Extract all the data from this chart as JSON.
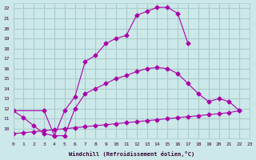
{
  "xlabel": "Windchill (Refroidissement éolien,°C)",
  "bg_color": "#cce8e8",
  "grid_color": "#aacccc",
  "line_color": "#aa00aa",
  "xlim": [
    0,
    23
  ],
  "ylim": [
    9,
    22.5
  ],
  "yticks": [
    10,
    11,
    12,
    13,
    14,
    15,
    16,
    17,
    18,
    19,
    20,
    21,
    22
  ],
  "xticks": [
    0,
    1,
    2,
    3,
    4,
    5,
    6,
    7,
    8,
    9,
    10,
    11,
    12,
    13,
    14,
    15,
    16,
    17,
    18,
    19,
    20,
    21,
    22,
    23
  ],
  "curve1_x": [
    0,
    1,
    2,
    3,
    4,
    5,
    6,
    7,
    8,
    9,
    10,
    11,
    12,
    13,
    14,
    15,
    16,
    17
  ],
  "curve1_y": [
    11.8,
    11.1,
    10.3,
    9.5,
    9.3,
    11.8,
    13.2,
    16.7,
    17.3,
    18.5,
    19.0,
    19.3,
    21.3,
    21.7,
    22.1,
    22.1,
    21.5,
    18.5
  ],
  "curve2_x": [
    0,
    3,
    4,
    5,
    6,
    7,
    8,
    9,
    10,
    11,
    12,
    13,
    14,
    15,
    16,
    17,
    18,
    19,
    20,
    21,
    22
  ],
  "curve2_y": [
    11.8,
    11.8,
    9.3,
    9.3,
    12.0,
    13.5,
    14.0,
    14.5,
    15.0,
    15.3,
    15.7,
    16.0,
    16.1,
    16.0,
    15.5,
    14.5,
    13.5,
    12.7,
    13.0,
    12.7,
    11.8
  ],
  "curve3_x": [
    0,
    1,
    2,
    3,
    4,
    5,
    6,
    7,
    8,
    9,
    10,
    11,
    12,
    13,
    14,
    15,
    16,
    17,
    18,
    19,
    20,
    21,
    22
  ],
  "curve3_y": [
    9.5,
    9.6,
    9.7,
    9.8,
    9.9,
    10.0,
    10.1,
    10.2,
    10.3,
    10.4,
    10.5,
    10.6,
    10.7,
    10.8,
    10.9,
    11.0,
    11.1,
    11.2,
    11.3,
    11.4,
    11.5,
    11.6,
    11.8
  ]
}
